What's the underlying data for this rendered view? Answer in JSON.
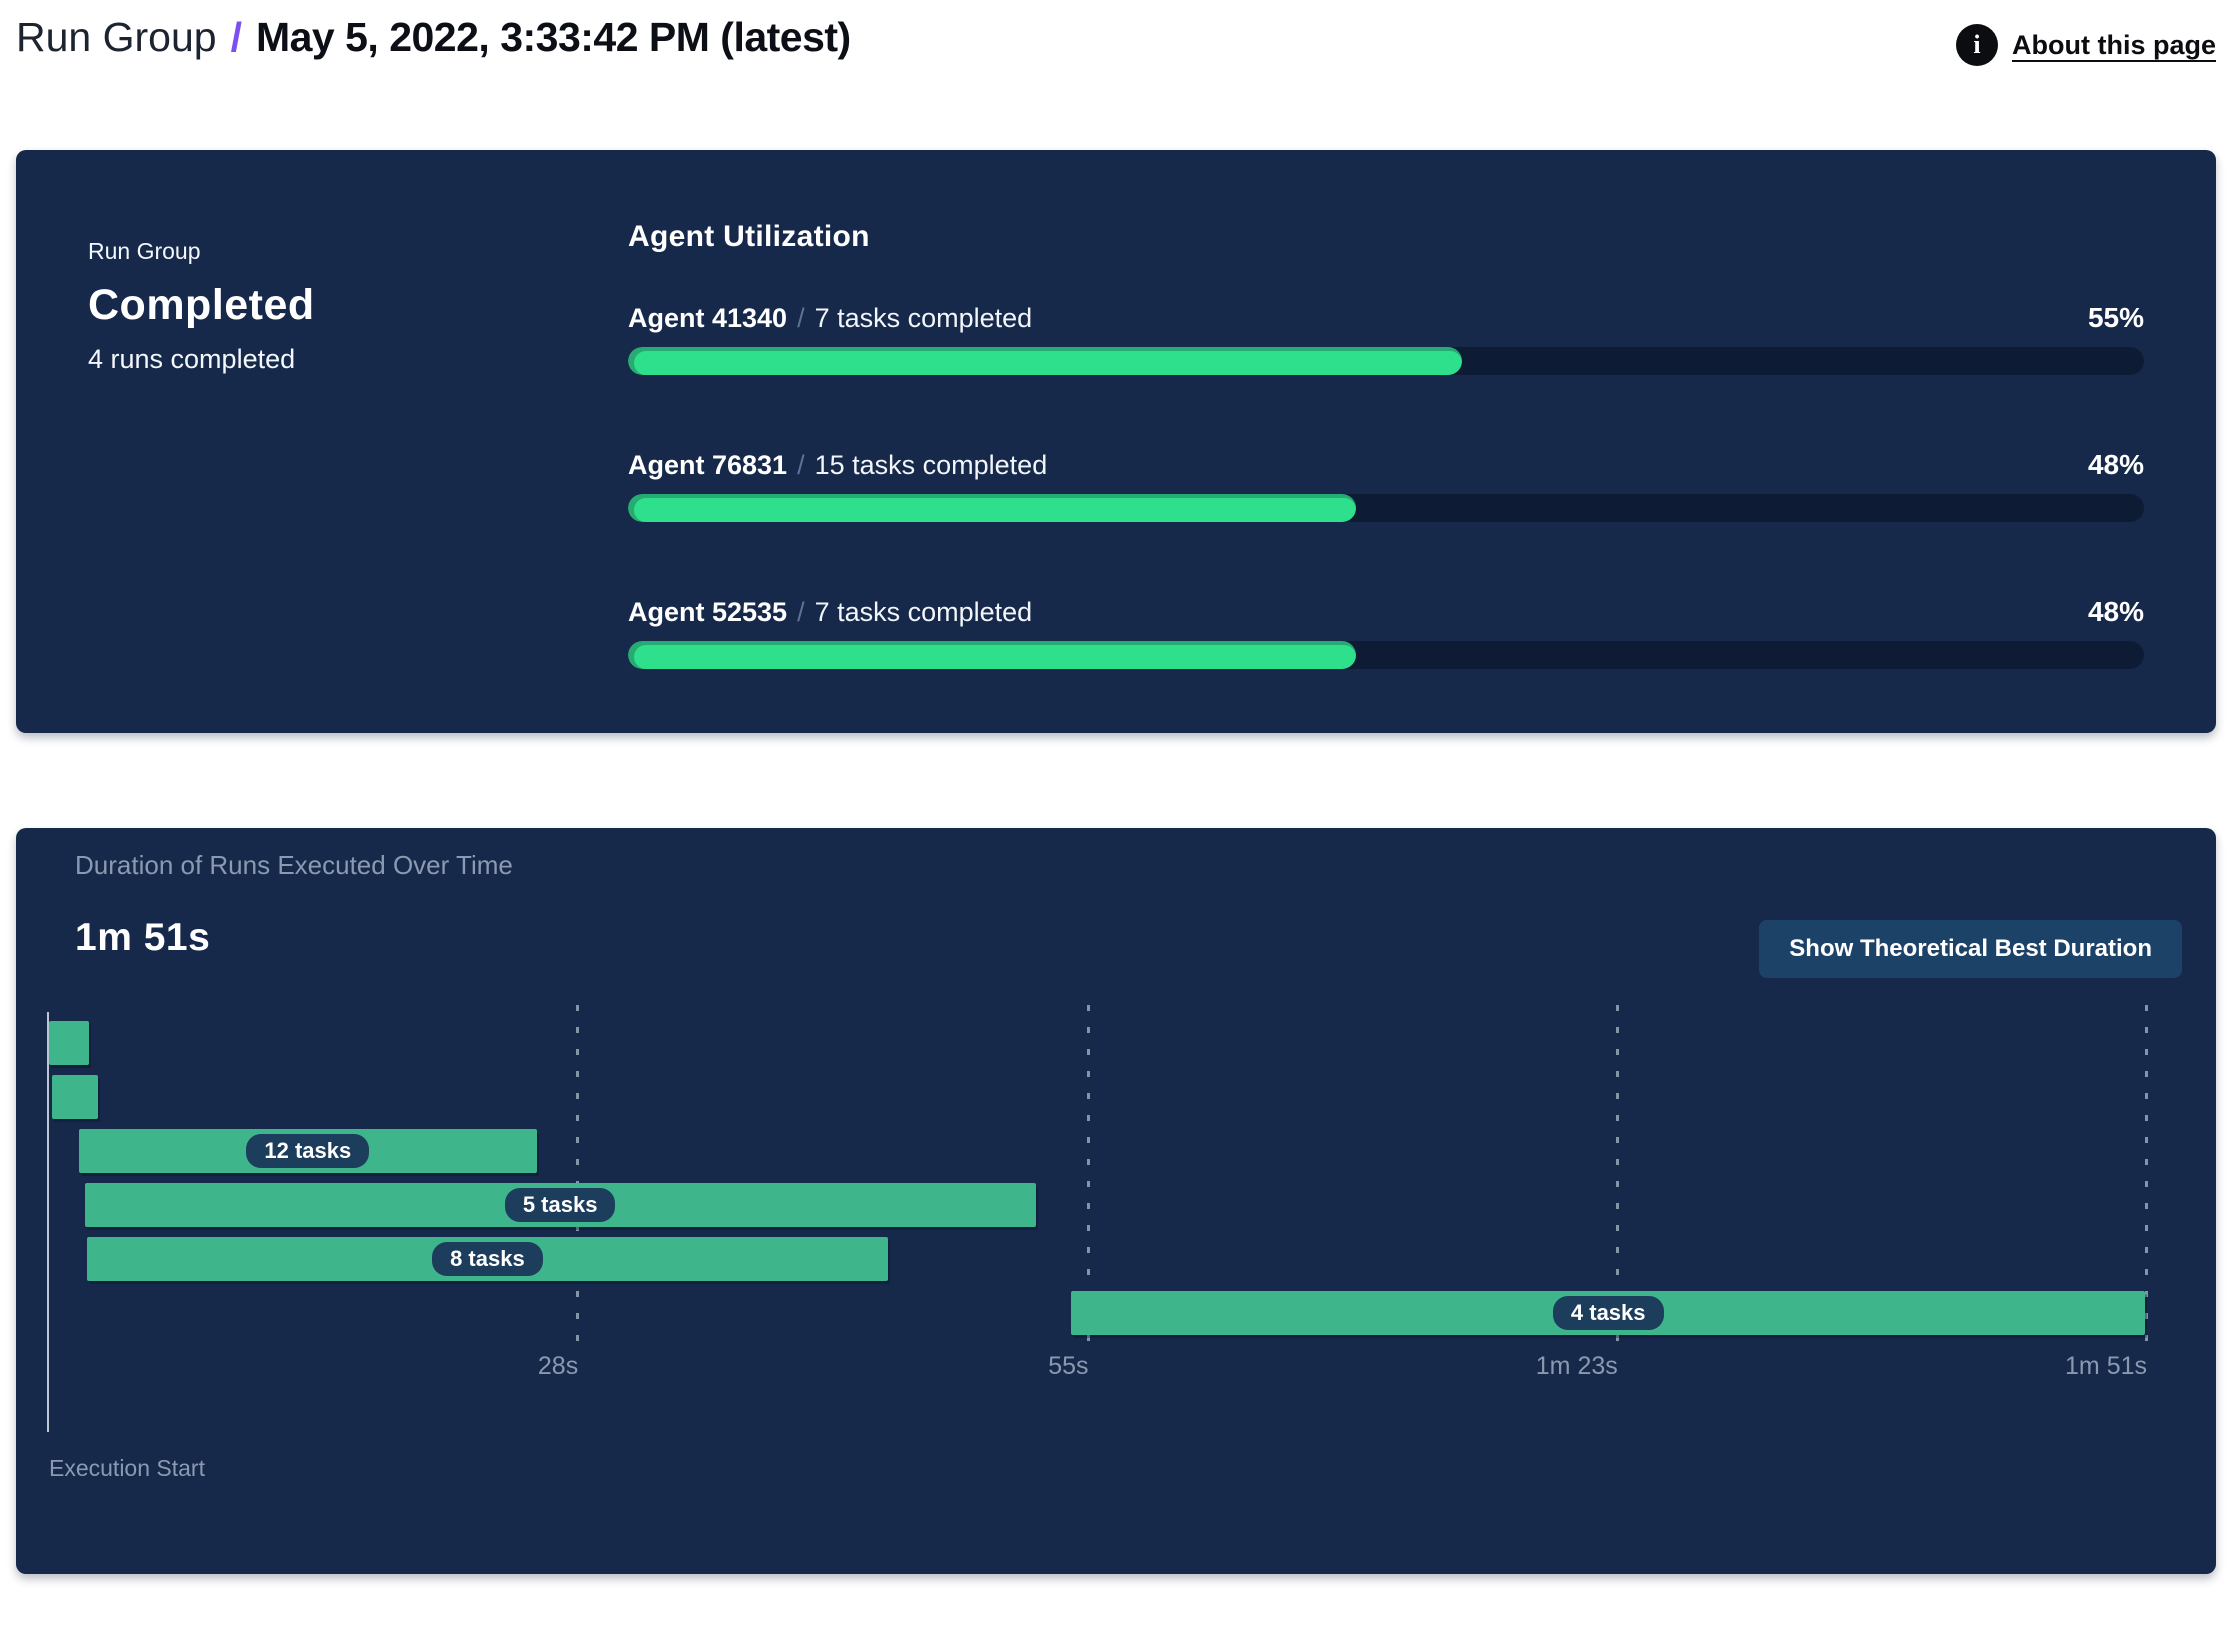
{
  "header": {
    "breadcrumb_root": "Run Group",
    "separator": "/",
    "title": "May 5, 2022, 3:33:42 PM (latest)",
    "about_label": "About this page"
  },
  "colors": {
    "panel_background": "#16294b",
    "accent_purple": "#7b4ff0",
    "progress_green": "#2ee08c",
    "progress_green_dark": "#27ab72",
    "gantt_green": "#3fb58c",
    "track_navy": "#0d1c34",
    "pill_navy": "#1c3d5c",
    "button_navy": "#1d4268",
    "muted_text": "#8b9ab0"
  },
  "status_panel": {
    "label": "Run Group",
    "status": "Completed",
    "sub": "4 runs completed"
  },
  "duration_panel": {
    "button_label": "Show Theoretical Best Duration"
  },
  "chart_data": [
    {
      "type": "bar",
      "title": "Agent Utilization",
      "unit": "percent",
      "xlim": [
        0,
        100
      ],
      "bars": [
        {
          "label": "Agent 41340",
          "sublabel": "7 tasks completed",
          "value": 55
        },
        {
          "label": "Agent 76831",
          "sublabel": "15 tasks completed",
          "value": 48
        },
        {
          "label": "Agent 52535",
          "sublabel": "7 tasks completed",
          "value": 48
        }
      ]
    },
    {
      "type": "bar",
      "variant": "gantt",
      "title": "Duration of Runs Executed Over Time",
      "total_duration_label": "1m 51s",
      "time_axis": {
        "range_seconds": [
          0,
          111
        ],
        "origin_label": "Execution Start",
        "ticks": [
          {
            "label": "28s",
            "seconds": 28
          },
          {
            "label": "55s",
            "seconds": 55
          },
          {
            "label": "1m 23s",
            "seconds": 83
          },
          {
            "label": "1m 51s",
            "seconds": 111
          }
        ]
      },
      "runs": [
        {
          "start_s": 0.1,
          "end_s": 2.2,
          "tasks_label": null
        },
        {
          "start_s": 0.25,
          "end_s": 2.7,
          "tasks_label": null
        },
        {
          "start_s": 1.7,
          "end_s": 25.9,
          "tasks_label": "12 tasks"
        },
        {
          "start_s": 2.0,
          "end_s": 52.3,
          "tasks_label": "5 tasks"
        },
        {
          "start_s": 2.1,
          "end_s": 44.5,
          "tasks_label": "8 tasks"
        },
        {
          "start_s": 54.2,
          "end_s": 111,
          "tasks_label": "4 tasks"
        }
      ]
    }
  ]
}
